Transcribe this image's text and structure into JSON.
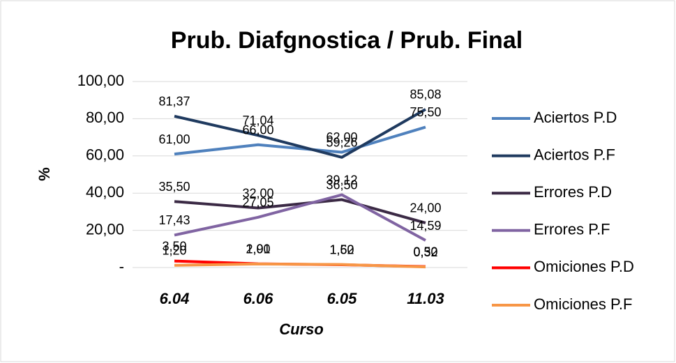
{
  "chart_data": {
    "type": "line",
    "title": "Prub. Diafgnostica / Prub. Final",
    "x_label": "Curso",
    "y_label": "%",
    "categories": [
      "6.04",
      "6.06",
      "6.05",
      "11.03"
    ],
    "ylim": [
      0,
      100
    ],
    "yticks": [
      {
        "value": 0,
        "label": "-"
      },
      {
        "value": 20,
        "label": "20,00"
      },
      {
        "value": 40,
        "label": "40,00"
      },
      {
        "value": 60,
        "label": "60,00"
      },
      {
        "value": 80,
        "label": "80,00"
      },
      {
        "value": 100,
        "label": "100,00"
      }
    ],
    "grid": true,
    "legend": "right",
    "series": [
      {
        "name": "Aciertos P.D",
        "color": "#4f81bd",
        "values": [
          61.0,
          66.0,
          62.0,
          75.5
        ],
        "value_labels": [
          "61,00",
          "66,00",
          "62,00",
          "75,50"
        ]
      },
      {
        "name": "Aciertos P.F",
        "color": "#1f3a5f",
        "values": [
          81.37,
          71.04,
          59.26,
          85.08
        ],
        "value_labels": [
          "81,37",
          "71,04",
          "59,26",
          "85,08"
        ]
      },
      {
        "name": "Errores P.D",
        "color": "#3b2a45",
        "values": [
          35.5,
          32.0,
          36.5,
          24.0
        ],
        "value_labels": [
          "35,50",
          "32,00",
          "36,50",
          "24,00"
        ]
      },
      {
        "name": "Errores P.F",
        "color": "#8064a2",
        "values": [
          17.43,
          27.05,
          39.12,
          14.59
        ],
        "value_labels": [
          "17,43",
          "27,05",
          "39,12",
          "14,59"
        ]
      },
      {
        "name": "Omiciones P.D",
        "color": "#ff0000",
        "values": [
          3.5,
          2.0,
          1.5,
          0.5
        ],
        "value_labels": [
          "3,50",
          "2,00",
          "1,50",
          "0,50"
        ]
      },
      {
        "name": "Omiciones P.F",
        "color": "#f79646",
        "values": [
          1.2,
          1.91,
          1.62,
          0.32
        ],
        "value_labels": [
          "1,20",
          "1,91",
          "1,62",
          "0,32"
        ]
      }
    ]
  }
}
